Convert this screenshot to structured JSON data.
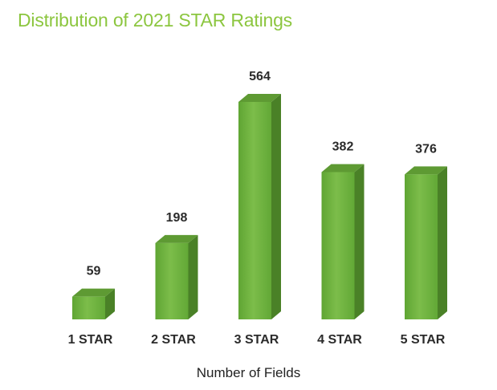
{
  "chart_data": {
    "type": "bar",
    "title": "Distribution of 2021 STAR Ratings",
    "xlabel": "Number of Fields",
    "ylabel": "",
    "categories": [
      "1 STAR",
      "2 STAR",
      "3 STAR",
      "4 STAR",
      "5 STAR"
    ],
    "values": [
      59,
      198,
      564,
      382,
      376
    ],
    "data_labels": [
      "59",
      "198",
      "564",
      "382",
      "376"
    ],
    "ylim": [
      0,
      600
    ],
    "grid": false,
    "legend": "none",
    "style": "3d-column"
  },
  "colors": {
    "title": "#8cc63f",
    "bar_front": "#6fb43c",
    "bar_side": "#4a8127",
    "bar_top": "#5e9a33",
    "text": "#2b2b2b"
  }
}
